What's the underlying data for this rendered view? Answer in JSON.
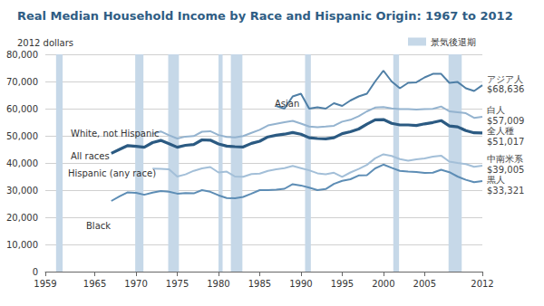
{
  "chart_data": {
    "type": "line",
    "title": "Real Median Household Income by Race and Hispanic Origin: 1967 to 2012",
    "y_label": "2012 dollars",
    "x": [
      1967,
      1968,
      1969,
      1970,
      1971,
      1972,
      1973,
      1974,
      1975,
      1976,
      1977,
      1978,
      1979,
      1980,
      1981,
      1982,
      1983,
      1984,
      1985,
      1986,
      1987,
      1988,
      1989,
      1990,
      1991,
      1992,
      1993,
      1994,
      1995,
      1996,
      1997,
      1998,
      1999,
      2000,
      2001,
      2002,
      2003,
      2004,
      2005,
      2006,
      2007,
      2008,
      2009,
      2010,
      2011,
      2012
    ],
    "xlim": [
      1959,
      2012
    ],
    "xticks": [
      1959,
      1965,
      1970,
      1975,
      1980,
      1985,
      1990,
      1995,
      2000,
      2005,
      2012
    ],
    "ylim": [
      0,
      80000
    ],
    "yticks": [
      0,
      {
        "value": 10000,
        "label": "10,000"
      },
      {
        "value": 20000,
        "label": "20,000"
      },
      {
        "value": 30000,
        "label": "30,000"
      },
      {
        "value": 40000,
        "label": "40,000"
      },
      {
        "value": 50000,
        "label": "50,000"
      },
      {
        "value": 60000,
        "label": "60,000"
      },
      {
        "value": 70000,
        "label": "70,000"
      },
      {
        "value": 80000,
        "label": "80,000"
      }
    ],
    "grid": true,
    "legend": "top-right",
    "recessions": {
      "name": "景気後退期",
      "color": "#c6d8e8",
      "spans": [
        [
          1960.3,
          1961.1
        ],
        [
          1969.9,
          1970.9
        ],
        [
          1973.9,
          1975.2
        ],
        [
          1980.0,
          1980.5
        ],
        [
          1981.5,
          1982.9
        ],
        [
          1990.5,
          1991.2
        ],
        [
          2001.2,
          2001.9
        ],
        [
          2007.9,
          2009.5
        ]
      ]
    },
    "series": [
      {
        "name": "Asian",
        "color": "#4f7fa6",
        "end_label": "アジア人",
        "end_value_label": "$68,636",
        "values": [
          null,
          null,
          null,
          null,
          null,
          null,
          null,
          null,
          null,
          null,
          null,
          null,
          null,
          null,
          null,
          null,
          null,
          null,
          null,
          null,
          61000,
          60000,
          64500,
          65500,
          60000,
          60500,
          60000,
          62000,
          61000,
          63000,
          64500,
          65500,
          70000,
          74000,
          70000,
          67500,
          69500,
          69700,
          71500,
          72800,
          72800,
          69500,
          69800,
          67500,
          66500,
          68636
        ]
      },
      {
        "name": "White, not Hispanic",
        "color": "#94b3cf",
        "end_label": "白人",
        "end_value_label": "$57,009",
        "values": [
          null,
          null,
          null,
          null,
          null,
          50700,
          51600,
          50200,
          49000,
          49700,
          49900,
          51500,
          51700,
          50300,
          49600,
          49400,
          49900,
          51100,
          52200,
          53800,
          54400,
          55000,
          55500,
          54500,
          53400,
          53200,
          53400,
          53700,
          55200,
          55900,
          57200,
          59000,
          60400,
          60600,
          60100,
          59800,
          59800,
          59700,
          59800,
          59900,
          60800,
          59000,
          58700,
          58300,
          56600,
          57009
        ]
      },
      {
        "name": "All races",
        "color": "#2b5a82",
        "line_style": "thick",
        "end_label": "全人種",
        "end_value_label": "$51,017",
        "values": [
          43558,
          45000,
          46400,
          46100,
          45800,
          47500,
          48300,
          47100,
          45800,
          46500,
          46800,
          48500,
          48400,
          47000,
          46200,
          46000,
          45900,
          47200,
          48000,
          49600,
          50200,
          50600,
          51200,
          50600,
          49300,
          49000,
          48900,
          49300,
          50800,
          51500,
          52500,
          54300,
          55900,
          55990,
          54600,
          54000,
          54000,
          53800,
          54400,
          54900,
          55600,
          53600,
          53300,
          51900,
          51100,
          51017
        ]
      },
      {
        "name": "Hispanic (any race)",
        "color": "#a3bfd8",
        "end_label": "中南米系",
        "end_value_label": "$39,005",
        "values": [
          null,
          null,
          null,
          null,
          null,
          37900,
          37800,
          37700,
          35000,
          35800,
          37100,
          38000,
          38500,
          36500,
          36800,
          35000,
          34900,
          35900,
          36100,
          37100,
          37700,
          38100,
          38900,
          38100,
          37300,
          36200,
          35800,
          36400,
          34900,
          36500,
          37800,
          39300,
          41700,
          43200,
          42600,
          41400,
          40800,
          41300,
          41700,
          42300,
          42700,
          40500,
          40000,
          39600,
          38600,
          39005
        ]
      },
      {
        "name": "Black",
        "color": "#5d8db5",
        "end_label": "黒人",
        "end_value_label": "$33,321",
        "values": [
          26000,
          27700,
          29200,
          29000,
          28300,
          29100,
          29700,
          29400,
          28700,
          28900,
          28800,
          30000,
          29400,
          28100,
          27100,
          27000,
          27500,
          28700,
          30000,
          30000,
          30200,
          30500,
          32200,
          31700,
          30900,
          30000,
          30400,
          32300,
          33400,
          34000,
          35400,
          35500,
          38000,
          39400,
          38200,
          37100,
          36800,
          36700,
          36300,
          36400,
          37500,
          36600,
          35000,
          33800,
          32900,
          33321
        ]
      }
    ]
  }
}
